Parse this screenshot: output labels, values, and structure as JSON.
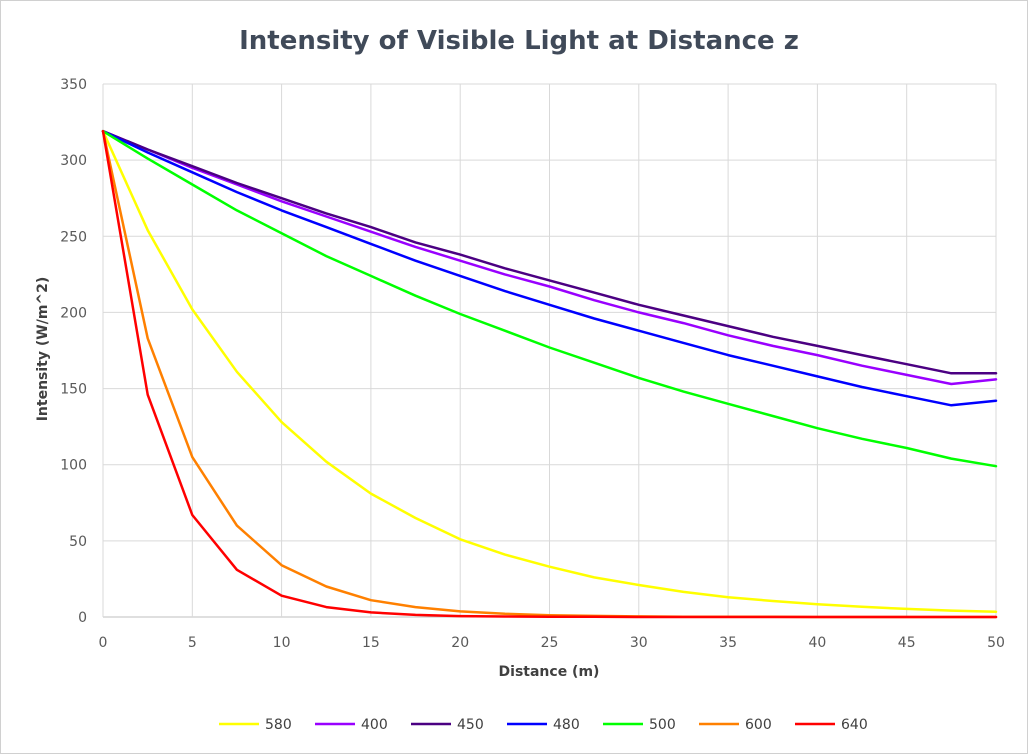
{
  "chart_data": {
    "type": "line",
    "title": "Intensity of Visible Light at Distance z",
    "xlabel": "Distance (m)",
    "ylabel": "Intensity (W/m^2)",
    "xlim": [
      0,
      50
    ],
    "ylim": [
      0,
      350
    ],
    "x_ticks": [
      "0",
      "5",
      "10",
      "15",
      "20",
      "25",
      "30",
      "35",
      "40",
      "45",
      "50"
    ],
    "y_ticks": [
      "0",
      "50",
      "100",
      "150",
      "200",
      "250",
      "300",
      "350"
    ],
    "grid": true,
    "legend_position": "bottom",
    "x": [
      0,
      2.5,
      5,
      7.5,
      10,
      12.5,
      15,
      17.5,
      20,
      22.5,
      25,
      27.5,
      30,
      32.5,
      35,
      37.5,
      40,
      42.5,
      45,
      47.5,
      50
    ],
    "series": [
      {
        "name": "580",
        "color": "#ffff00",
        "values": [
          319,
          254,
          202,
          161,
          128,
          102,
          81,
          65,
          51,
          41,
          33,
          26,
          21,
          16.5,
          13,
          10.5,
          8.4,
          6.7,
          5.3,
          4.2,
          3.4
        ]
      },
      {
        "name": "400",
        "color": "#9900ff",
        "values": [
          319,
          307,
          295,
          284,
          273,
          263,
          253,
          243,
          234,
          225,
          217,
          208,
          200,
          193,
          185,
          178,
          172,
          165,
          159,
          153,
          156
        ]
      },
      {
        "name": "450",
        "color": "#4b0082",
        "values": [
          319,
          307,
          296,
          285,
          275,
          265,
          256,
          246,
          238,
          229,
          221,
          213,
          205,
          198,
          191,
          184,
          178,
          172,
          166,
          160,
          160
        ]
      },
      {
        "name": "480",
        "color": "#0000ff",
        "values": [
          319,
          305,
          292,
          279,
          267,
          256,
          245,
          234,
          224,
          214,
          205,
          196,
          188,
          180,
          172,
          165,
          158,
          151,
          145,
          139,
          142
        ]
      },
      {
        "name": "500",
        "color": "#00ff00",
        "values": [
          319,
          301,
          284,
          267,
          252,
          237,
          224,
          211,
          199,
          188,
          177,
          167,
          157,
          148,
          140,
          132,
          124,
          117,
          111,
          104,
          99
        ]
      },
      {
        "name": "600",
        "color": "#ff8000",
        "values": [
          319,
          183,
          105,
          60,
          34,
          20,
          11,
          6.5,
          3.7,
          2.1,
          1.2,
          0.7,
          0.4,
          0.2,
          0.1,
          0.1,
          0,
          0,
          0,
          0,
          0
        ]
      },
      {
        "name": "640",
        "color": "#ff0000",
        "values": [
          319,
          146,
          67,
          31,
          14,
          6.5,
          3,
          1.4,
          0.6,
          0.3,
          0.1,
          0.1,
          0,
          0,
          0,
          0,
          0,
          0,
          0,
          0,
          0
        ]
      }
    ]
  }
}
